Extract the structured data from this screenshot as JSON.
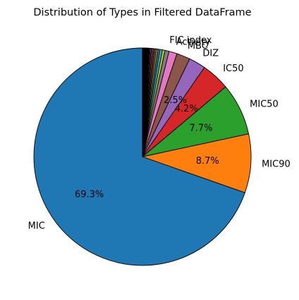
{
  "chart_data": {
    "type": "pie",
    "title": "Distribution of Types in Filtered DataFrame",
    "slices": [
      {
        "label": "MIC",
        "value": 69.3,
        "pct_label": "69.3%",
        "color": "#1f77b4"
      },
      {
        "label": "MIC90",
        "value": 8.7,
        "pct_label": "8.7%",
        "color": "#ff7f0e"
      },
      {
        "label": "MIC50",
        "value": 7.7,
        "pct_label": "7.7%",
        "color": "#2ca02c"
      },
      {
        "label": "IC50",
        "value": 4.2,
        "pct_label": "4.2%",
        "color": "#d62728"
      },
      {
        "label": "DIZ",
        "value": 2.5,
        "pct_label": "2.5%",
        "color": "#9467bd"
      },
      {
        "label": "MBC",
        "value": 2.0,
        "pct_label": "",
        "color": "#8c564b"
      },
      {
        "label": "Activity",
        "value": 1.2,
        "pct_label": "",
        "color": "#e377c2"
      },
      {
        "label": "FIC index",
        "value": 0.6,
        "pct_label": "",
        "color": "#7f7f7f"
      },
      {
        "label": "",
        "value": 0.4,
        "pct_label": "",
        "color": "#bcbd22"
      },
      {
        "label": "",
        "value": 0.35,
        "pct_label": "",
        "color": "#17becf"
      },
      {
        "label": "",
        "value": 0.3,
        "pct_label": "",
        "color": "#1f77b4"
      },
      {
        "label": "",
        "value": 0.25,
        "pct_label": "",
        "color": "#ff7f0e"
      },
      {
        "label": "",
        "value": 0.22,
        "pct_label": "",
        "color": "#2ca02c"
      },
      {
        "label": "",
        "value": 0.2,
        "pct_label": "",
        "color": "#d62728"
      },
      {
        "label": "",
        "value": 0.18,
        "pct_label": "",
        "color": "#9467bd"
      },
      {
        "label": "",
        "value": 0.16,
        "pct_label": "",
        "color": "#8c564b"
      },
      {
        "label": "",
        "value": 0.14,
        "pct_label": "",
        "color": "#e377c2"
      },
      {
        "label": "",
        "value": 0.12,
        "pct_label": "",
        "color": "#7f7f7f"
      },
      {
        "label": "",
        "value": 0.1,
        "pct_label": "",
        "color": "#bcbd22"
      },
      {
        "label": "",
        "value": 0.09,
        "pct_label": "",
        "color": "#17becf"
      },
      {
        "label": "",
        "value": 0.08,
        "pct_label": "",
        "color": "#1f77b4"
      },
      {
        "label": "",
        "value": 0.07,
        "pct_label": "",
        "color": "#ff7f0e"
      },
      {
        "label": "",
        "value": 0.06,
        "pct_label": "",
        "color": "#2ca02c"
      },
      {
        "label": "",
        "value": 0.05,
        "pct_label": "",
        "color": "#d62728"
      },
      {
        "label": "",
        "value": 0.05,
        "pct_label": "",
        "color": "#9467bd"
      },
      {
        "label": "",
        "value": 0.05,
        "pct_label": "",
        "color": "#8c564b"
      },
      {
        "label": "",
        "value": 0.04,
        "pct_label": "",
        "color": "#e377c2"
      },
      {
        "label": "",
        "value": 0.04,
        "pct_label": "",
        "color": "#7f7f7f"
      },
      {
        "label": "",
        "value": 0.04,
        "pct_label": "",
        "color": "#bcbd22"
      },
      {
        "label": "",
        "value": 0.03,
        "pct_label": "",
        "color": "#17becf"
      },
      {
        "label": "",
        "value": 0.03,
        "pct_label": "",
        "color": "#1f77b4"
      },
      {
        "label": "",
        "value": 0.03,
        "pct_label": "",
        "color": "#ff7f0e"
      },
      {
        "label": "",
        "value": 0.03,
        "pct_label": "",
        "color": "#2ca02c"
      },
      {
        "label": "",
        "value": 0.03,
        "pct_label": "",
        "color": "#d62728"
      },
      {
        "label": "",
        "value": 0.02,
        "pct_label": "",
        "color": "#9467bd"
      },
      {
        "label": "",
        "value": 0.02,
        "pct_label": "",
        "color": "#8c564b"
      },
      {
        "label": "",
        "value": 0.02,
        "pct_label": "",
        "color": "#e377c2"
      },
      {
        "label": "",
        "value": 0.02,
        "pct_label": "",
        "color": "#7f7f7f"
      },
      {
        "label": "",
        "value": 0.02,
        "pct_label": "",
        "color": "#bcbd22"
      },
      {
        "label": "",
        "value": 0.02,
        "pct_label": "",
        "color": "#17becf"
      },
      {
        "label": "",
        "value": 0.02,
        "pct_label": "",
        "color": "#1f77b4"
      },
      {
        "label": "",
        "value": 0.02,
        "pct_label": "",
        "color": "#ff7f0e"
      },
      {
        "label": "",
        "value": 0.02,
        "pct_label": "",
        "color": "#2ca02c"
      }
    ],
    "start_angle_deg": 90,
    "direction": "counterclockwise",
    "edge_color": "#000000"
  }
}
